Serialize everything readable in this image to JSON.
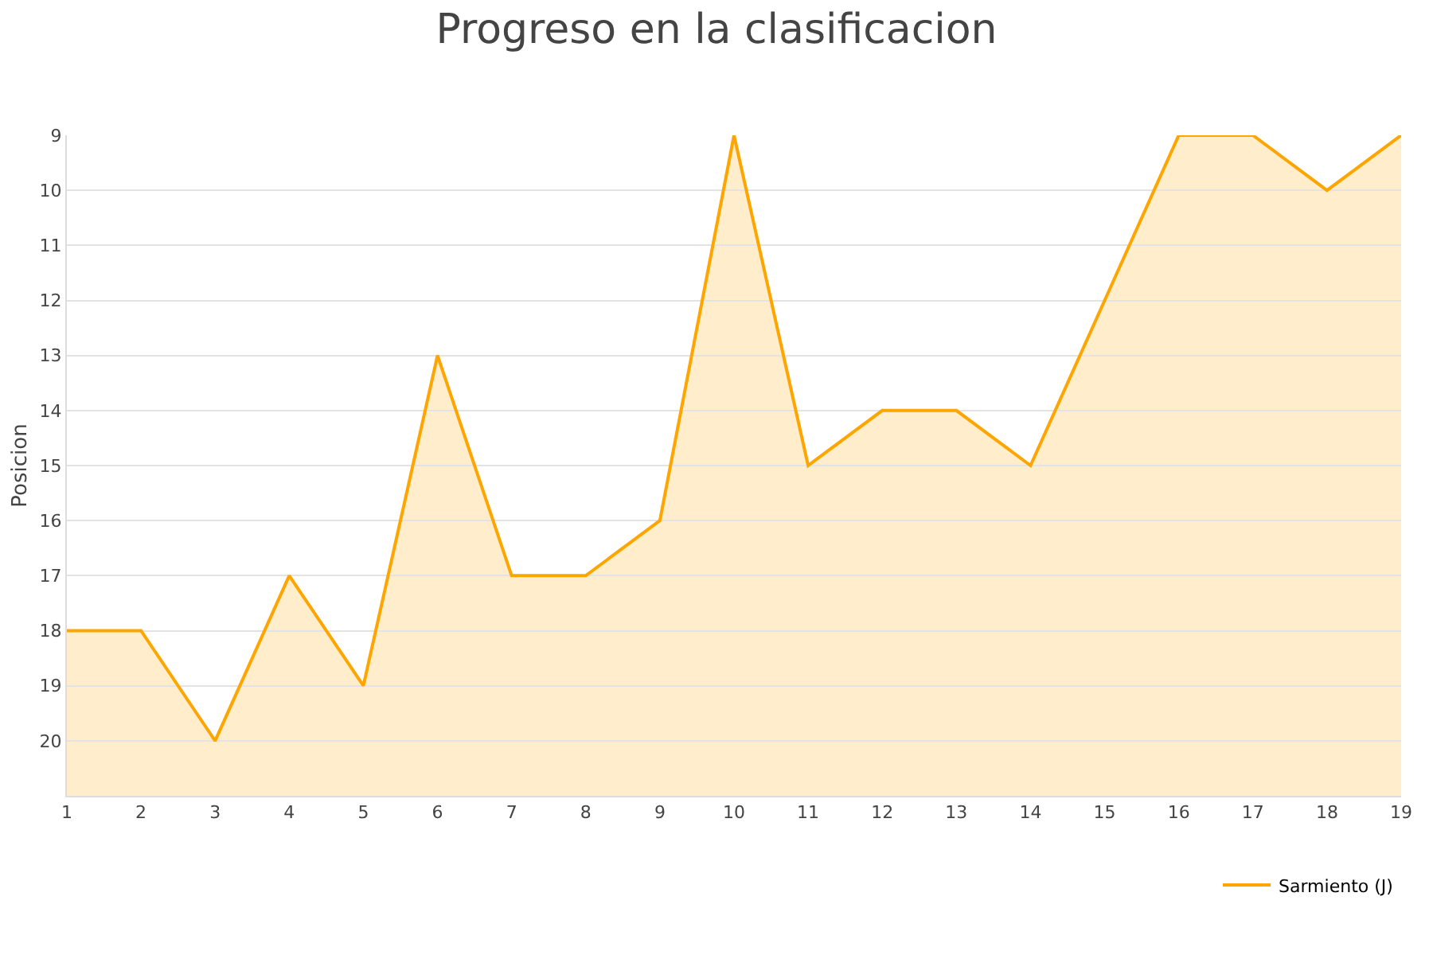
{
  "chart_data": {
    "type": "area",
    "title": "Progreso en la clasificacion",
    "ylabel": "Posicion",
    "x": [
      1,
      2,
      3,
      4,
      5,
      6,
      7,
      8,
      9,
      10,
      11,
      12,
      13,
      14,
      15,
      16,
      17,
      18,
      19
    ],
    "series": [
      {
        "name": "Sarmiento (J)",
        "color": "#ffa500",
        "values": [
          18,
          18,
          20,
          17,
          19,
          13,
          17,
          17,
          16,
          9,
          15,
          14,
          14,
          15,
          12,
          9,
          9,
          10,
          9
        ]
      }
    ],
    "xlim": [
      1,
      19
    ],
    "xticks": [
      1,
      2,
      3,
      4,
      5,
      6,
      7,
      8,
      9,
      10,
      11,
      12,
      13,
      14,
      15,
      16,
      17,
      18,
      19
    ],
    "ylim": [
      21,
      9
    ],
    "yticks": [
      9,
      10,
      11,
      12,
      13,
      14,
      15,
      16,
      17,
      18,
      19,
      20
    ],
    "grid": "y",
    "legend": "bottom right",
    "marker": "none",
    "line_style": "solid"
  }
}
